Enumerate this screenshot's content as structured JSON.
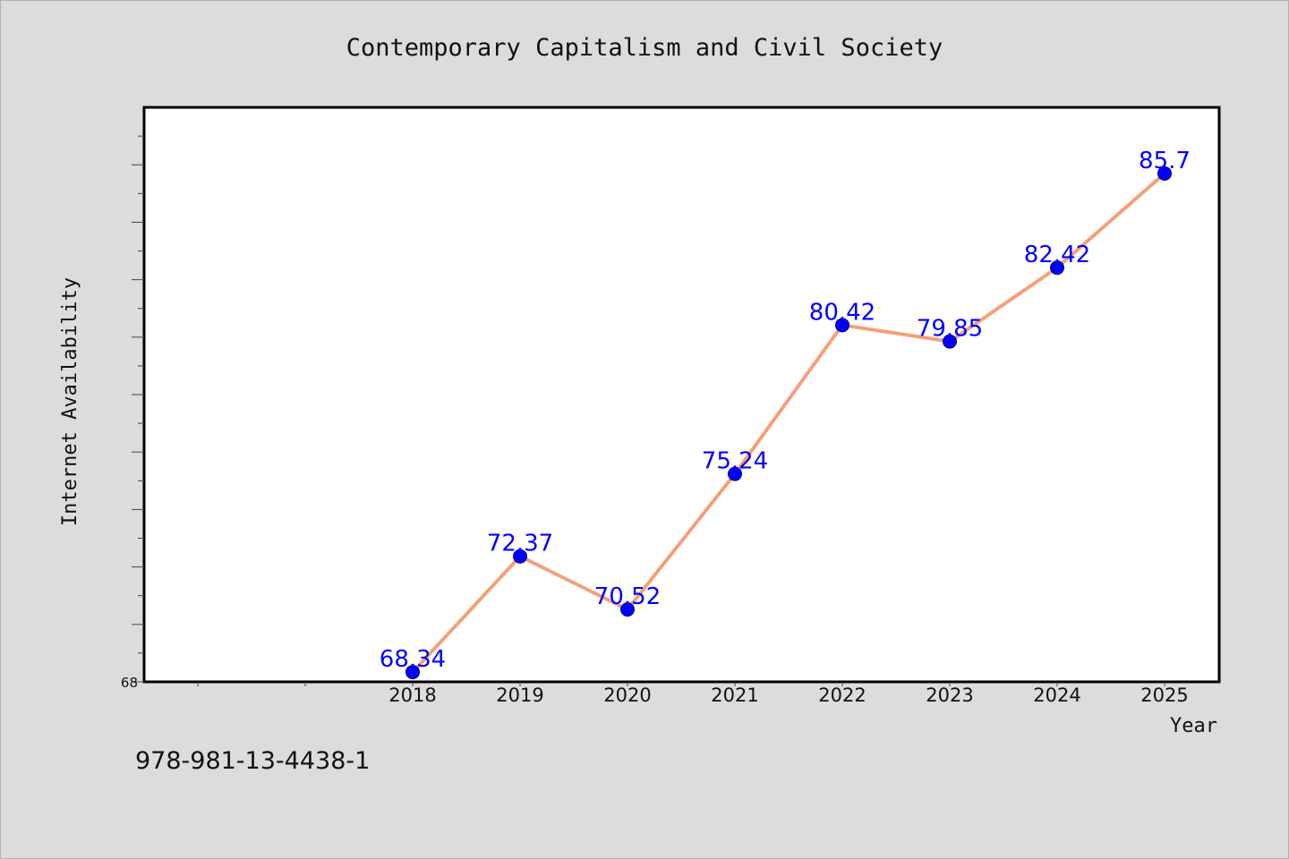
{
  "chart_data": {
    "type": "line",
    "title": "Contemporary Capitalism and Civil Society",
    "xlabel": "Year",
    "ylabel": "Internet Availability",
    "categories": [
      "2018",
      "2019",
      "2020",
      "2021",
      "2022",
      "2023",
      "2024",
      "2025"
    ],
    "series": [
      {
        "values": [
          68.34,
          72.37,
          70.52,
          75.24,
          80.42,
          79.85,
          82.42,
          85.7
        ],
        "data_labels": [
          "68.34",
          "72.37",
          "70.52",
          "75.24",
          "80.42",
          "79.85",
          "82.42",
          "85.7"
        ]
      }
    ],
    "ylim": [
      68,
      88
    ],
    "yticks": [
      "68"
    ],
    "grid": false,
    "line_color": "#f4a07a",
    "marker_color": "#0000ff"
  },
  "footer": {
    "isbn": "978-981-13-4438-1"
  }
}
